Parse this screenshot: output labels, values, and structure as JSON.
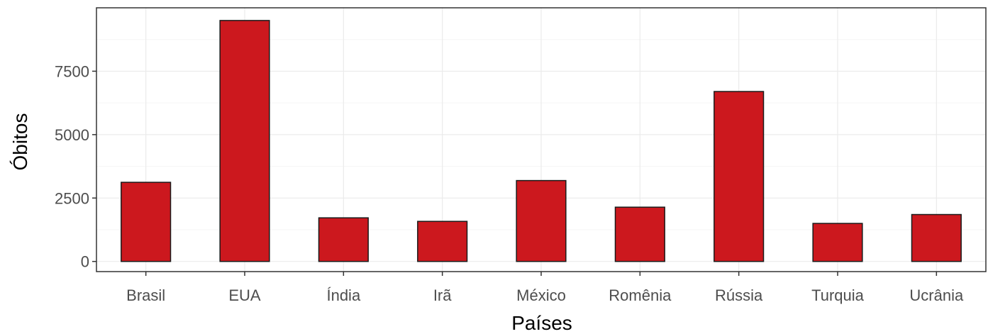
{
  "chart_data": {
    "type": "bar",
    "title": "",
    "xlabel": "Países",
    "ylabel": "Óbitos",
    "categories": [
      "Brasil",
      "EUA",
      "Índia",
      "Irã",
      "México",
      "Romênia",
      "Rússia",
      "Turquia",
      "Ucrânia"
    ],
    "values": [
      3120,
      9500,
      1720,
      1580,
      3190,
      2140,
      6700,
      1500,
      1850
    ],
    "ylim": [
      -400,
      10000
    ],
    "yticks": [
      0,
      2500,
      5000,
      7500
    ],
    "ytick_labels": [
      "0",
      "2500",
      "5000",
      "7500"
    ],
    "grid": true,
    "legend": "none",
    "bar_fill": "#cc181e",
    "bar_stroke": "#1a1a1a",
    "panel_border": "#333333",
    "grid_major": "#ebebeb",
    "grid_minor": "#f5f5f5"
  }
}
